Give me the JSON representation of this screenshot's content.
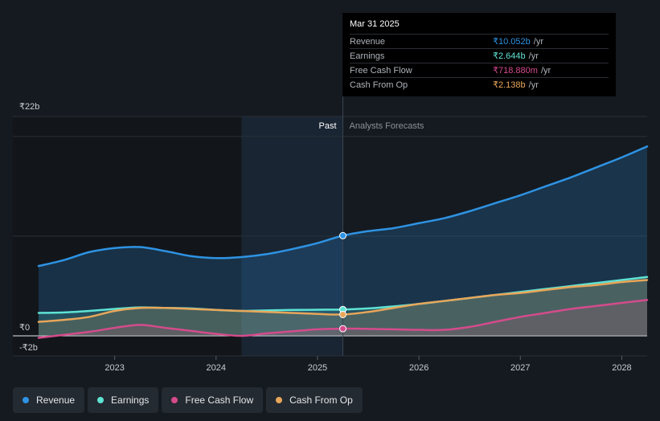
{
  "tooltip": {
    "date": "Mar 31 2025",
    "rows": [
      {
        "label": "Revenue",
        "value": "₹10.052b",
        "unit": "/yr",
        "color": "#2e93e3"
      },
      {
        "label": "Earnings",
        "value": "₹2.644b",
        "unit": "/yr",
        "color": "#5fe3d3"
      },
      {
        "label": "Free Cash Flow",
        "value": "₹718.880m",
        "unit": "/yr",
        "color": "#d44b8c"
      },
      {
        "label": "Cash From Op",
        "value": "₹2.138b",
        "unit": "/yr",
        "color": "#e8a65a"
      }
    ]
  },
  "legend": [
    {
      "label": "Revenue",
      "color": "#2e93e3"
    },
    {
      "label": "Earnings",
      "color": "#5fe3d3"
    },
    {
      "label": "Free Cash Flow",
      "color": "#d44b8c"
    },
    {
      "label": "Cash From Op",
      "color": "#e8a65a"
    }
  ],
  "chart_data": {
    "type": "line",
    "title": "",
    "region_labels": {
      "past": "Past",
      "forecast": "Analysts Forecasts"
    },
    "y_top_label": "₹22b",
    "y_zero_label": "₹0",
    "y_bottom_label": "-₹2b",
    "ylim": [
      -2,
      22
    ],
    "xlim": [
      2022.25,
      2028.25
    ],
    "x_ticks": [
      2023,
      2024,
      2025,
      2026,
      2027,
      2028
    ],
    "x_tick_labels": [
      "2023",
      "2024",
      "2025",
      "2026",
      "2027",
      "2028"
    ],
    "past_shade_start": 2024.25,
    "current": 2025.25,
    "series": [
      {
        "name": "Revenue",
        "color": "#2e93e3",
        "x": [
          2022.25,
          2022.5,
          2022.75,
          2023.0,
          2023.25,
          2023.5,
          2023.75,
          2024.0,
          2024.25,
          2024.5,
          2024.75,
          2025.0,
          2025.25,
          2025.5,
          2025.75,
          2026.0,
          2026.25,
          2026.5,
          2026.75,
          2027.0,
          2027.25,
          2027.5,
          2027.75,
          2028.0,
          2028.25
        ],
        "y": [
          7.0,
          7.6,
          8.4,
          8.8,
          8.9,
          8.5,
          8.0,
          7.8,
          7.9,
          8.2,
          8.7,
          9.3,
          10.052,
          10.5,
          10.8,
          11.3,
          11.8,
          12.5,
          13.3,
          14.1,
          15.0,
          15.9,
          16.9,
          17.9,
          19.0
        ]
      },
      {
        "name": "Earnings",
        "color": "#5fe3d3",
        "x": [
          2022.25,
          2022.5,
          2022.75,
          2023.0,
          2023.25,
          2023.5,
          2023.75,
          2024.0,
          2024.25,
          2024.5,
          2024.75,
          2025.0,
          2025.25,
          2025.5,
          2025.75,
          2026.0,
          2026.25,
          2026.5,
          2026.75,
          2027.0,
          2027.25,
          2027.5,
          2027.75,
          2028.0,
          2028.25
        ],
        "y": [
          2.3,
          2.35,
          2.5,
          2.7,
          2.85,
          2.8,
          2.75,
          2.6,
          2.5,
          2.55,
          2.6,
          2.62,
          2.644,
          2.75,
          2.95,
          3.2,
          3.5,
          3.8,
          4.1,
          4.4,
          4.7,
          5.0,
          5.3,
          5.6,
          5.9
        ]
      },
      {
        "name": "Free Cash Flow",
        "color": "#d44b8c",
        "x": [
          2022.25,
          2022.5,
          2022.75,
          2023.0,
          2023.25,
          2023.5,
          2023.75,
          2024.0,
          2024.25,
          2024.5,
          2024.75,
          2025.0,
          2025.25,
          2025.5,
          2025.75,
          2026.0,
          2026.25,
          2026.5,
          2026.75,
          2027.0,
          2027.25,
          2027.5,
          2027.75,
          2028.0,
          2028.25
        ],
        "y": [
          -0.2,
          0.1,
          0.4,
          0.8,
          1.1,
          0.8,
          0.5,
          0.2,
          0.0,
          0.25,
          0.45,
          0.65,
          0.7188,
          0.7,
          0.65,
          0.6,
          0.6,
          0.9,
          1.4,
          1.9,
          2.3,
          2.7,
          3.0,
          3.3,
          3.6
        ]
      },
      {
        "name": "Cash From Op",
        "color": "#e8a65a",
        "x": [
          2022.25,
          2022.5,
          2022.75,
          2023.0,
          2023.25,
          2023.5,
          2023.75,
          2024.0,
          2024.25,
          2024.5,
          2024.75,
          2025.0,
          2025.25,
          2025.5,
          2025.75,
          2026.0,
          2026.25,
          2026.5,
          2026.75,
          2027.0,
          2027.25,
          2027.5,
          2027.75,
          2028.0,
          2028.25
        ],
        "y": [
          1.4,
          1.6,
          1.9,
          2.5,
          2.8,
          2.8,
          2.7,
          2.6,
          2.5,
          2.4,
          2.3,
          2.2,
          2.138,
          2.4,
          2.8,
          3.2,
          3.5,
          3.8,
          4.1,
          4.3,
          4.6,
          4.9,
          5.1,
          5.4,
          5.6
        ]
      }
    ]
  }
}
